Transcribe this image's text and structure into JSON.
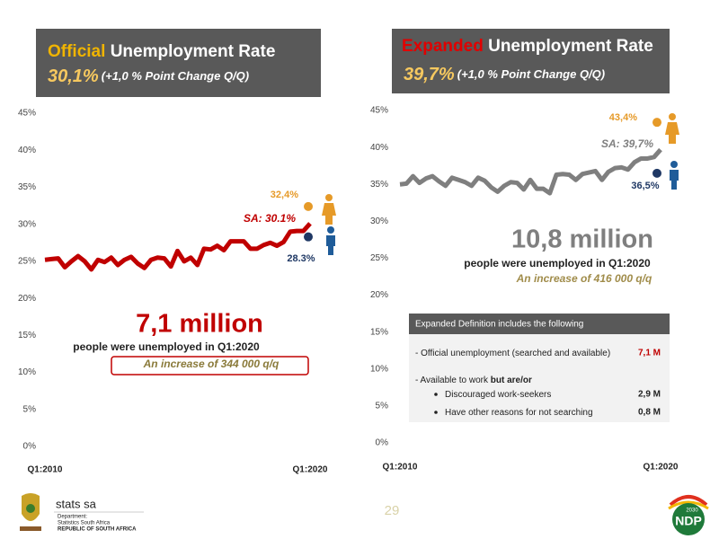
{
  "chart_data": [
    {
      "type": "line",
      "title_prefix": "Official",
      "title": "Unemployment Rate",
      "headline": "30,1%",
      "subtitle": "(+1,0 % Point Change Q/Q)",
      "categories": [
        "Q1:2010",
        null,
        null,
        null,
        null,
        null,
        null,
        null,
        null,
        null,
        null,
        null,
        null,
        null,
        null,
        null,
        null,
        null,
        null,
        null,
        null,
        null,
        null,
        null,
        null,
        null,
        null,
        null,
        null,
        null,
        null,
        null,
        null,
        null,
        null,
        null,
        null,
        null,
        null,
        null,
        "Q1:2020"
      ],
      "series": [
        {
          "name": "SA: 30.1%",
          "color": "#c00000",
          "values": [
            25.2,
            25.3,
            25.4,
            24.2,
            25.0,
            25.7,
            25.0,
            23.9,
            25.2,
            24.9,
            25.5,
            24.5,
            25.2,
            25.6,
            24.7,
            24.1,
            25.2,
            25.5,
            25.4,
            24.3,
            26.4,
            25.0,
            25.5,
            24.5,
            26.7,
            26.6,
            27.1,
            26.5,
            27.7,
            27.7,
            27.7,
            26.7,
            26.7,
            27.2,
            27.5,
            27.1,
            27.6,
            29.0,
            29.1,
            29.1,
            30.1
          ]
        }
      ],
      "markers": [
        {
          "value": 32.4,
          "label": "32,4%",
          "color": "#e69a28"
        },
        {
          "value": 28.3,
          "label": "28.3%",
          "color": "#1f3864"
        }
      ],
      "callout": {
        "big": "7,1 million",
        "text": "people were unemployed in Q1:2020",
        "note": "An increase of 344 000 q/q"
      },
      "ylim": [
        0,
        45
      ],
      "yticks": [
        {
          "value": 0,
          "label": "0%"
        },
        {
          "value": 5,
          "label": "5%"
        },
        {
          "value": 10,
          "label": "10%"
        },
        {
          "value": 15,
          "label": "15%"
        },
        {
          "value": 20,
          "label": "20%"
        },
        {
          "value": 25,
          "label": "25%"
        },
        {
          "value": 30,
          "label": "30%"
        },
        {
          "value": 35,
          "label": "35%"
        },
        {
          "value": 40,
          "label": "40%"
        },
        {
          "value": 45,
          "label": "45%"
        }
      ],
      "grid": false
    },
    {
      "type": "line",
      "title_prefix": "Expanded",
      "title": "Unemployment Rate",
      "headline": "39,7%",
      "subtitle": "(+1,0 % Point Change Q/Q)",
      "categories": [
        "Q1:2010",
        null,
        null,
        null,
        null,
        null,
        null,
        null,
        null,
        null,
        null,
        null,
        null,
        null,
        null,
        null,
        null,
        null,
        null,
        null,
        null,
        null,
        null,
        null,
        null,
        null,
        null,
        null,
        null,
        null,
        null,
        null,
        null,
        null,
        null,
        null,
        null,
        null,
        null,
        null,
        "Q1:2020"
      ],
      "series": [
        {
          "name": "SA: 39,7%",
          "color": "#7f7f7f",
          "values": [
            35.0,
            35.1,
            36.1,
            35.2,
            35.8,
            36.1,
            35.4,
            34.8,
            35.9,
            35.6,
            35.3,
            34.8,
            35.9,
            35.5,
            34.6,
            34.0,
            34.8,
            35.3,
            35.2,
            34.3,
            35.6,
            34.4,
            34.4,
            33.8,
            36.3,
            36.4,
            36.3,
            35.6,
            36.4,
            36.6,
            36.8,
            35.6,
            36.7,
            37.2,
            37.3,
            37.0,
            38.0,
            38.5,
            38.5,
            38.7,
            39.7
          ]
        }
      ],
      "markers": [
        {
          "value": 43.4,
          "label": "43,4%",
          "color": "#e69a28"
        },
        {
          "value": 36.5,
          "label": "36,5%",
          "color": "#1f3864"
        }
      ],
      "callout": {
        "big": "10,8 million",
        "text": "people were unemployed in Q1:2020",
        "note": "An increase of 416 000 q/q"
      },
      "definition_box": {
        "header": "Expanded  Definition includes  the following",
        "rows": [
          {
            "text": "- Official unemployment (searched and available)",
            "value": "7,1 M"
          },
          {
            "text": "- Available to work",
            "bold": "but are/or"
          },
          {
            "text": "Discouraged work-seekers",
            "value": "2,9 M"
          },
          {
            "text": "Have other reasons for not searching",
            "value": "0,8 M"
          }
        ]
      },
      "ylim": [
        0,
        45
      ],
      "yticks": [
        {
          "value": 0,
          "label": "0%"
        },
        {
          "value": 5,
          "label": "5%"
        },
        {
          "value": 10,
          "label": "10%"
        },
        {
          "value": 15,
          "label": "15%"
        },
        {
          "value": 20,
          "label": "20%"
        },
        {
          "value": 25,
          "label": "25%"
        },
        {
          "value": 30,
          "label": "30%"
        },
        {
          "value": 35,
          "label": "35%"
        },
        {
          "value": 40,
          "label": "40%"
        },
        {
          "value": 45,
          "label": "45%"
        }
      ],
      "grid": false
    }
  ],
  "footer": {
    "logo": "stats sa",
    "department": "Department:",
    "dept_name": "Statistics South Africa",
    "country": "REPUBLIC OF SOUTH AFRICA",
    "page": "29",
    "ndp": "NDP",
    "ndp_year": "2030"
  }
}
